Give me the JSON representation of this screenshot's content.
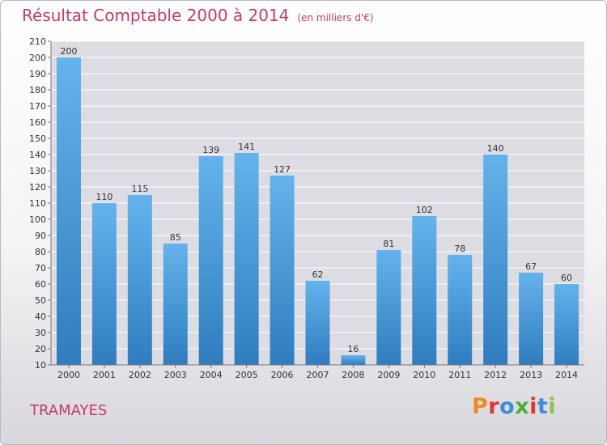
{
  "header": {
    "title": "Résultat Comptable 2000 à 2014",
    "unit": "(en milliers d'€)"
  },
  "footer": {
    "commune": "TRAMAYES",
    "logo_letters": [
      "P",
      "r",
      "o",
      "x",
      "i",
      "t",
      "i"
    ],
    "logo_colors": [
      "#f08a1e",
      "#e3342f",
      "#3a8fd8",
      "#4cae3c",
      "#e3342f",
      "#3a8fd8",
      "#8bc34a"
    ]
  },
  "colors": {
    "title": "#c8386a",
    "bar_top": "#64b3ec",
    "bar_bottom": "#2f7dbf",
    "grid": "#ffffff"
  },
  "chart_data": {
    "type": "bar",
    "title": "Résultat Comptable 2000 à 2014",
    "xlabel": "",
    "ylabel": "",
    "categories": [
      "2000",
      "2001",
      "2002",
      "2003",
      "2004",
      "2005",
      "2006",
      "2007",
      "2008",
      "2009",
      "2010",
      "2011",
      "2012",
      "2013",
      "2014"
    ],
    "values": [
      200,
      110,
      115,
      85,
      139,
      141,
      127,
      62,
      16,
      81,
      102,
      78,
      140,
      67,
      60
    ],
    "ylim": [
      10,
      210
    ],
    "yticks": [
      10,
      20,
      30,
      40,
      50,
      60,
      70,
      80,
      90,
      100,
      110,
      120,
      130,
      140,
      150,
      160,
      170,
      180,
      190,
      200,
      210
    ],
    "grid": true
  }
}
